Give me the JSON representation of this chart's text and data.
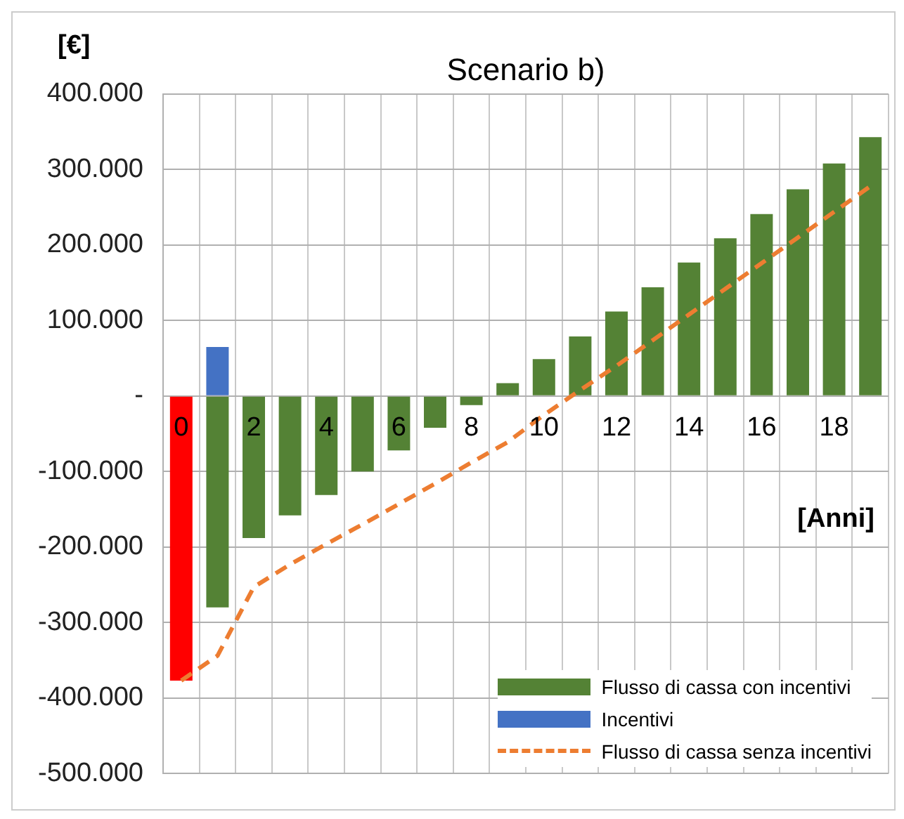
{
  "chart_data": {
    "type": "bar",
    "title": "Scenario b)",
    "xlabel": "[Anni]",
    "ylabel": "[€]",
    "categories": [
      "0",
      null,
      "2",
      null,
      "4",
      null,
      "6",
      null,
      "8",
      null,
      "10",
      null,
      "12",
      null,
      "14",
      null,
      "16",
      null,
      "18",
      null
    ],
    "stacked": true,
    "series": [
      {
        "name": "Flusso di cassa con incentivi",
        "color": "#548235",
        "values": [
          null,
          -280000,
          -188000,
          -158000,
          -131000,
          -100000,
          -72000,
          -42000,
          -12000,
          17000,
          49000,
          79000,
          112000,
          144000,
          177000,
          209000,
          241000,
          274000,
          308000,
          343000
        ]
      },
      {
        "name": "Incentivi",
        "color": "#4472c4",
        "values": [
          null,
          65000,
          null,
          null,
          null,
          null,
          null,
          null,
          null,
          null,
          null,
          null,
          null,
          null,
          null,
          null,
          null,
          null,
          null,
          null
        ]
      },
      {
        "color": "#ff0000",
        "values": [
          -377000,
          null,
          null,
          null,
          null,
          null,
          null,
          null,
          null,
          null,
          null,
          null,
          null,
          null,
          null,
          null,
          null,
          null,
          null,
          null
        ]
      },
      {
        "name": "Flusso di cassa senza incentivi",
        "type": "line",
        "line_style": "dashed",
        "marker": "none",
        "color": "#ed7d31",
        "values": [
          -377000,
          -344000,
          -253000,
          -223000,
          -196000,
          -170000,
          -143000,
          -116000,
          -88000,
          -61000,
          -25000,
          8000,
          40000,
          74000,
          108000,
          142000,
          176000,
          210000,
          244000,
          278000
        ]
      }
    ],
    "ylim": [
      -500000,
      400000
    ],
    "yticks": [
      {
        "value": -500000,
        "label": "-500.000"
      },
      {
        "value": -400000,
        "label": "-400.000"
      },
      {
        "value": -300000,
        "label": "-300.000"
      },
      {
        "value": -200000,
        "label": "-200.000"
      },
      {
        "value": -100000,
        "label": "-100.000"
      },
      {
        "value": 0,
        "label": "-"
      },
      {
        "value": 100000,
        "label": "100.000"
      },
      {
        "value": 200000,
        "label": "200.000"
      },
      {
        "value": 300000,
        "label": "300.000"
      },
      {
        "value": 400000,
        "label": "400.000"
      }
    ],
    "grid": true,
    "legend": "bottom right"
  }
}
